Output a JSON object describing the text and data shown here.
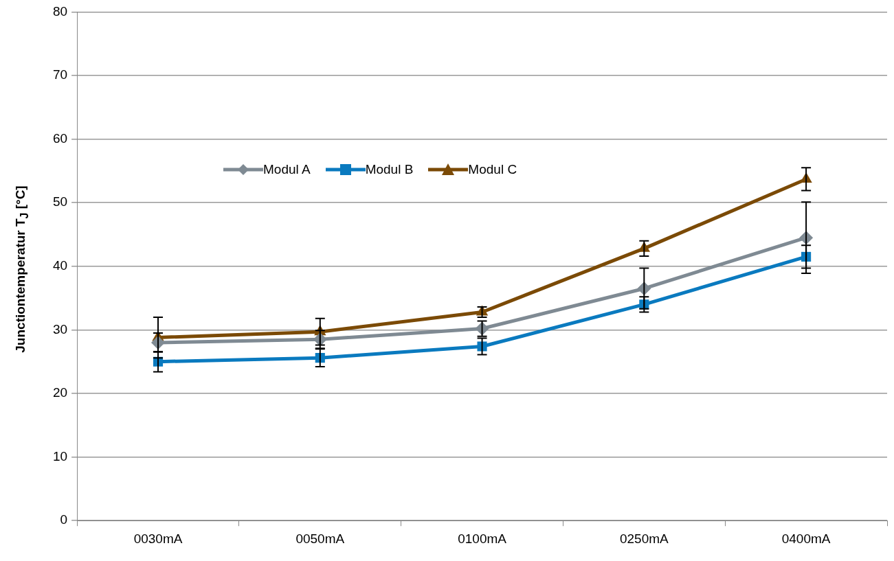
{
  "chart_data": {
    "type": "line",
    "ylabel": "Junctiontemperatur T$_{J}$ [°C]",
    "categories": [
      "0030mA",
      "0050mA",
      "0100mA",
      "0250mA",
      "0400mA"
    ],
    "series": [
      {
        "name": "Modul A",
        "color": "#7f8a93",
        "marker": "diamond",
        "values": [
          28.0,
          28.5,
          30.2,
          36.5,
          44.5
        ],
        "errors": [
          1.5,
          1.4,
          1.2,
          3.2,
          5.6
        ]
      },
      {
        "name": "Modul B",
        "color": "#0a7abf",
        "marker": "square",
        "values": [
          25.0,
          25.6,
          27.4,
          34.0,
          41.5
        ],
        "errors": [
          1.6,
          1.4,
          1.3,
          1.2,
          1.8
        ]
      },
      {
        "name": "Modul C",
        "color": "#7b4a06",
        "marker": "triangle",
        "values": [
          28.8,
          29.7,
          32.8,
          42.8,
          53.7
        ],
        "errors": [
          3.2,
          2.1,
          0.8,
          1.2,
          1.8
        ]
      }
    ],
    "ylim": [
      0,
      80
    ],
    "yticks": [
      0,
      10,
      20,
      30,
      40,
      50,
      60,
      70,
      80
    ],
    "grid": "y",
    "legend": "top",
    "line_style": "solid"
  }
}
